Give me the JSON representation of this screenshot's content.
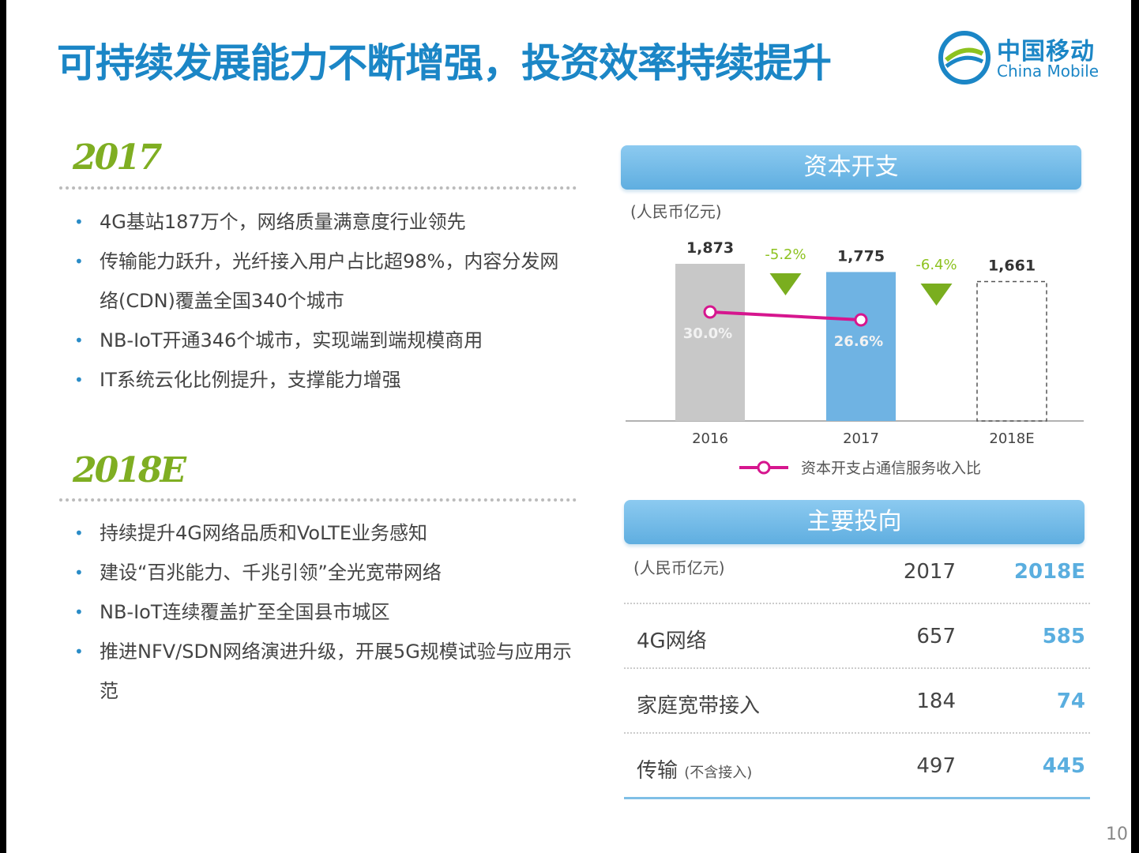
{
  "title": "可持续发展能力不断增强，投资效率持续提升",
  "logo": {
    "cn": "中国移动",
    "en": "China Mobile"
  },
  "section2017": {
    "year": "2017",
    "bullets": [
      "4G基站187万个，网络质量满意度行业领先",
      "传输能力跃升，光纤接入用户占比超98%，内容分发网络(CDN)覆盖全国340个城市",
      "NB-IoT开通346个城市，实现端到端规模商用",
      "IT系统云化比例提升，支撑能力增强"
    ]
  },
  "section2018": {
    "year": "2018E",
    "bullets": [
      "持续提升4G网络品质和VoLTE业务感知",
      "建设“百兆能力、千兆引领”全光宽带网络",
      "NB-IoT连续覆盖扩至全国县市城区",
      "推进NFV/SDN网络演进升级，开展5G规模试验与应用示范"
    ]
  },
  "capex": {
    "header": "资本开支",
    "unit": "(人民币亿元)"
  },
  "chart_data": {
    "type": "bar",
    "categories": [
      "2016",
      "2017",
      "2018E"
    ],
    "values": [
      1873,
      1775,
      1661
    ],
    "value_labels": [
      "1,873",
      "1,775",
      "1,661"
    ],
    "bar_colors": [
      "#c8c8c8",
      "#6fb3e3",
      "dashed-outline"
    ],
    "changes": [
      {
        "label": "-5.2%",
        "color": "#8dc21f"
      },
      {
        "label": "-6.4%",
        "color": "#8dc21f"
      }
    ],
    "line_series": {
      "name": "资本开支占通信服务收入比",
      "color": "#d6168e",
      "values": [
        30.0,
        26.6
      ],
      "labels": [
        "30.0%",
        "26.6%"
      ]
    },
    "ylabel": "(人民币亿元)",
    "ylim": [
      0,
      1873
    ],
    "legend": "bottom"
  },
  "invest": {
    "header": "主要投向",
    "unit": "(人民币亿元)",
    "cols": [
      "2017",
      "2018E"
    ],
    "rows": [
      {
        "name": "4G网络",
        "note": "",
        "v2017": "657",
        "v2018": "585"
      },
      {
        "name": "家庭宽带接入",
        "note": "",
        "v2017": "184",
        "v2018": "74"
      },
      {
        "name": "传输",
        "note": "(不含接入)",
        "v2017": "497",
        "v2018": "445"
      }
    ]
  },
  "page": "10"
}
